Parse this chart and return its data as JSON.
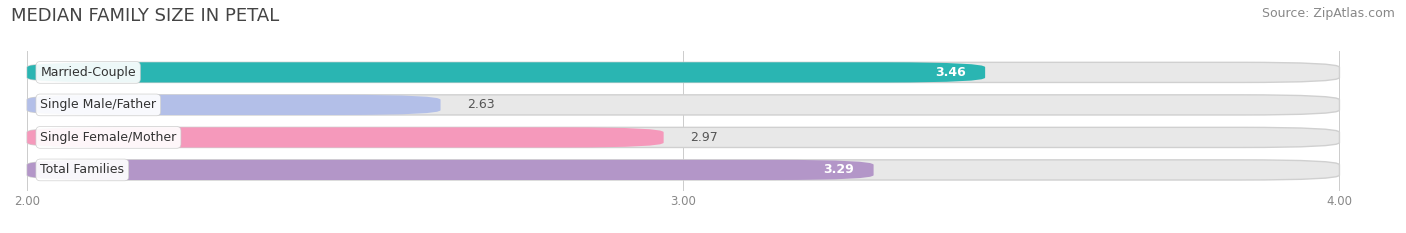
{
  "title": "MEDIAN FAMILY SIZE IN PETAL",
  "source": "Source: ZipAtlas.com",
  "categories": [
    "Married-Couple",
    "Single Male/Father",
    "Single Female/Mother",
    "Total Families"
  ],
  "values": [
    3.46,
    2.63,
    2.97,
    3.29
  ],
  "bar_colors": [
    "#2ab5b2",
    "#b3bfe8",
    "#f599bb",
    "#b396c8"
  ],
  "label_in_bar": [
    true,
    false,
    false,
    true
  ],
  "x_min": 2.0,
  "x_max": 4.0,
  "x_ticks": [
    2.0,
    3.0,
    4.0
  ],
  "x_tick_labels": [
    "2.00",
    "3.00",
    "4.00"
  ],
  "background_color": "#ffffff",
  "bar_track_color": "#e8e8e8",
  "bar_track_border": "#d0d0d0",
  "title_fontsize": 13,
  "source_fontsize": 9,
  "bar_label_fontsize": 9,
  "category_label_fontsize": 9,
  "bar_height": 0.62
}
